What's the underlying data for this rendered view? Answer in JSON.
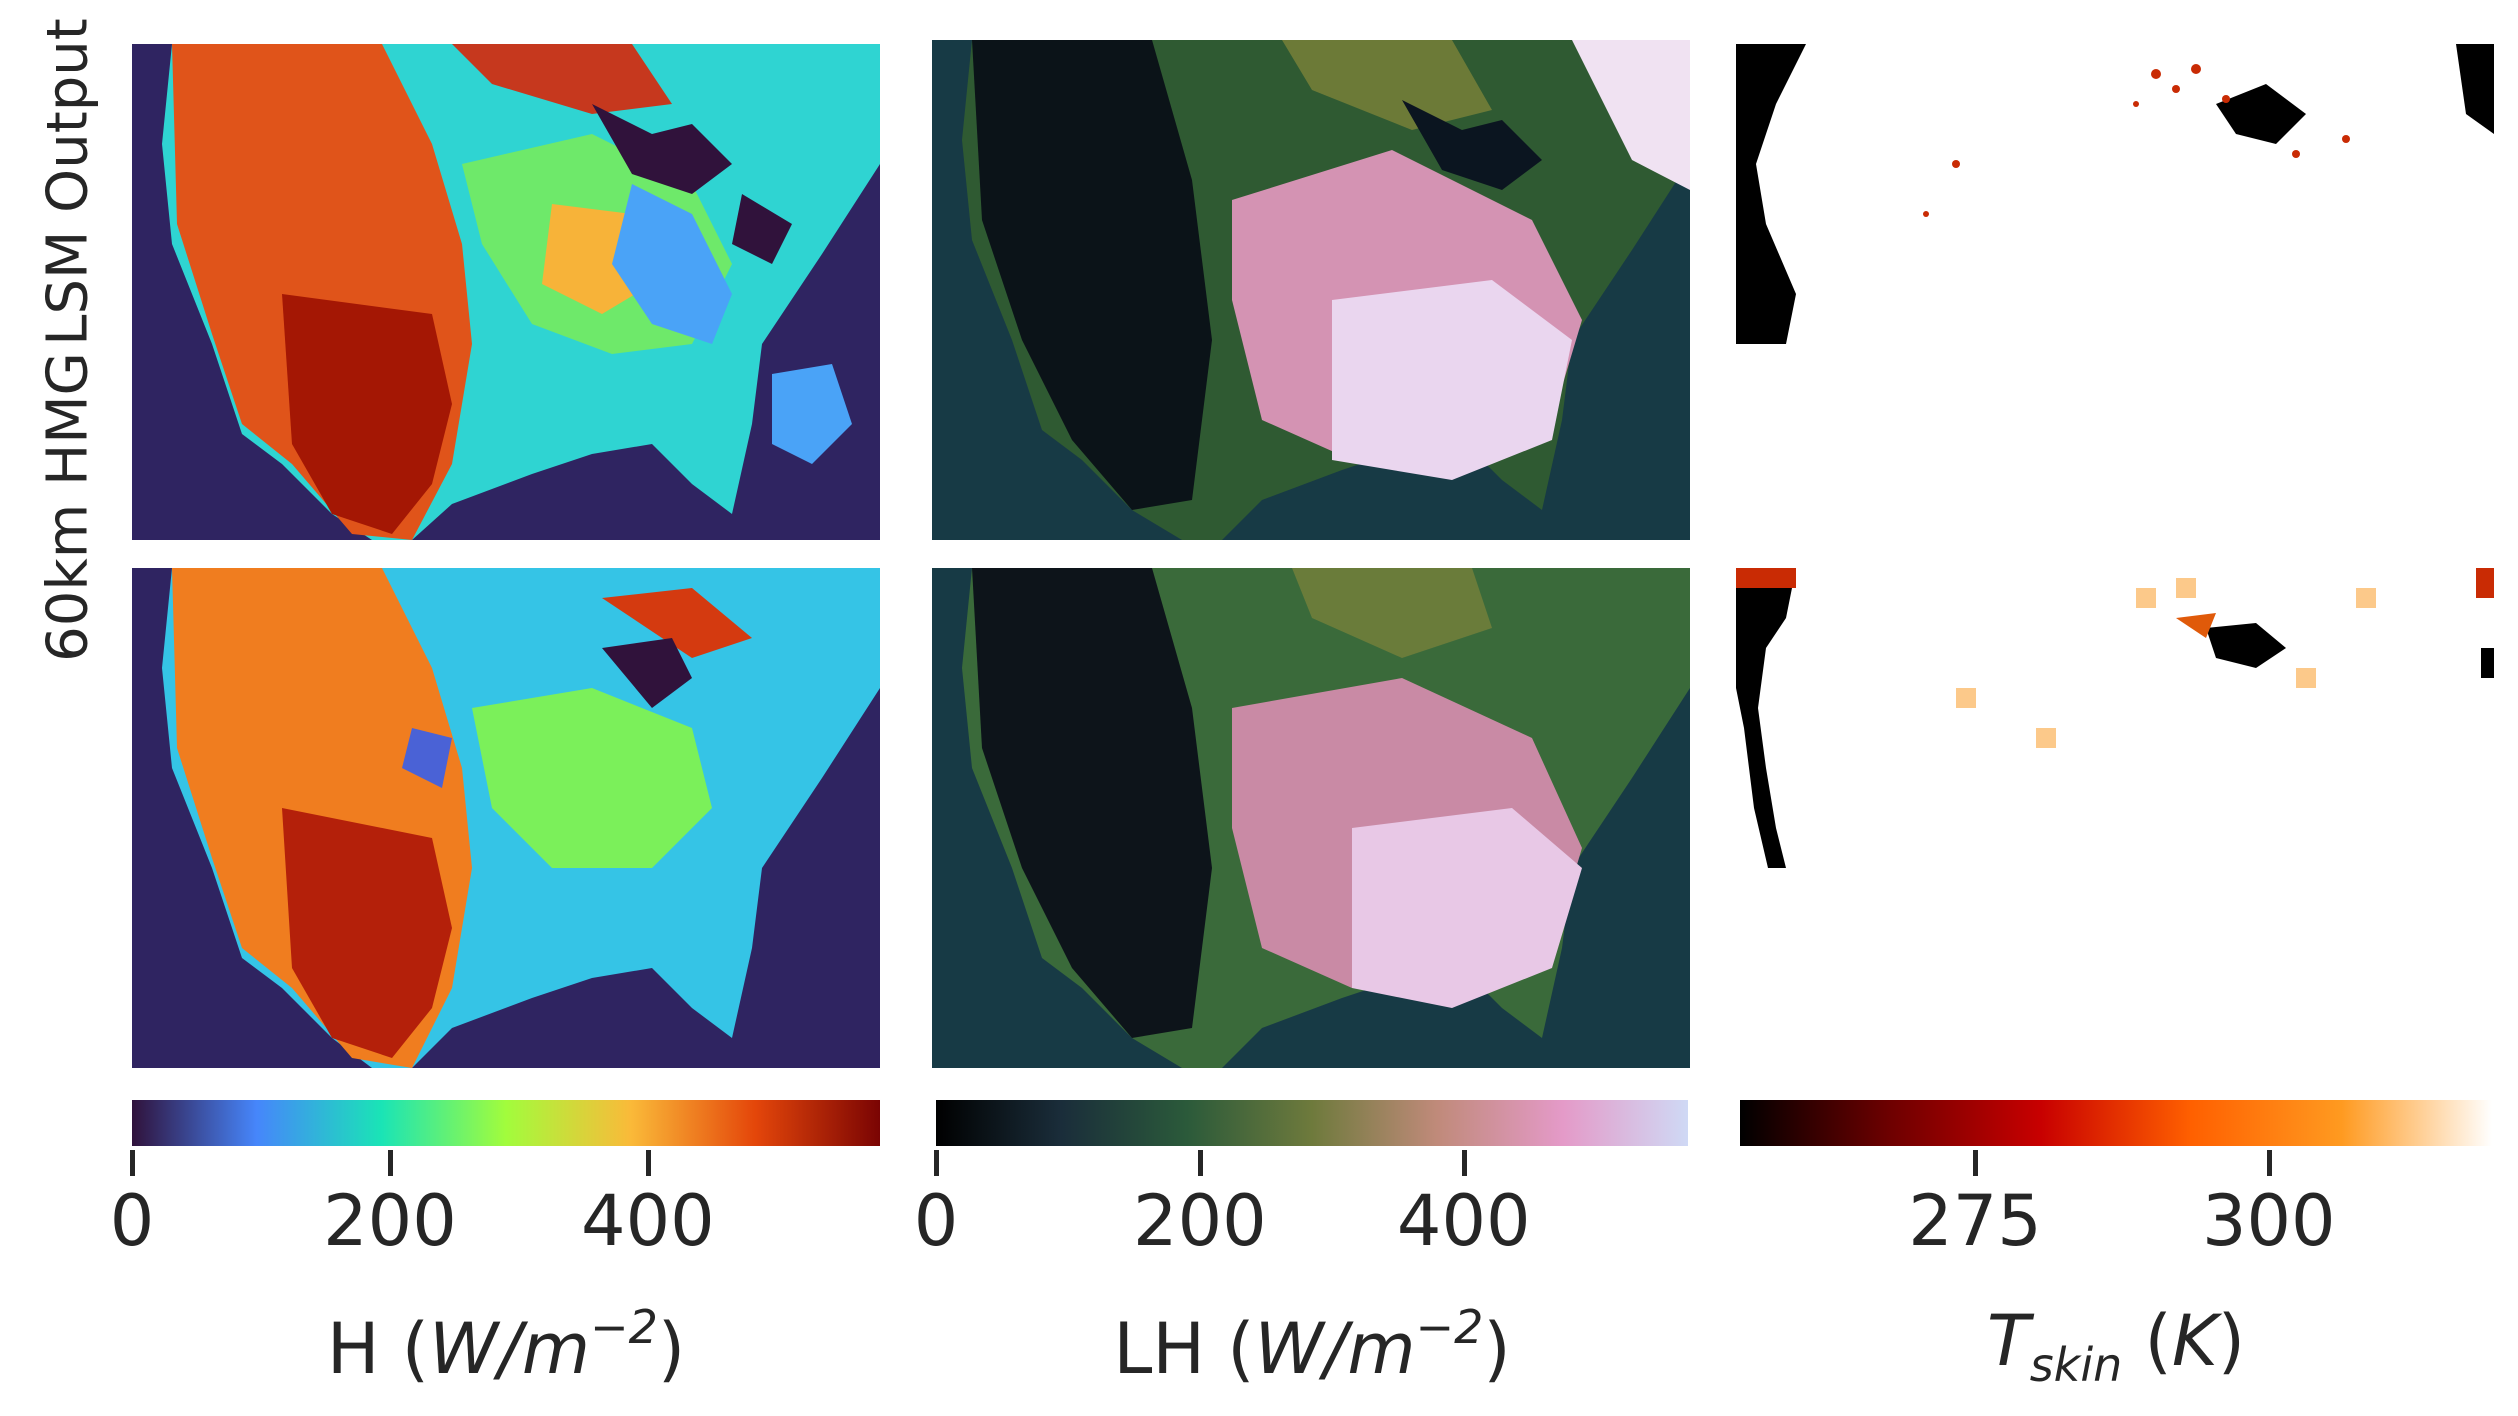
{
  "chart_data": {
    "type": "heatmap",
    "rows": [
      "LSM Output",
      "60km HMG"
    ],
    "columns": [
      {
        "variable": "H",
        "unit_label": "(W/m^-2)",
        "colormap": [
          "#30123b",
          "#4686fb",
          "#1ae4b6",
          "#a2fc3c",
          "#faba39",
          "#e4460a",
          "#7a0403"
        ],
        "vmin": 0,
        "vmax": 580,
        "ticks": [
          "0",
          "200",
          "400"
        ],
        "tick_values": [
          0,
          200,
          400
        ]
      },
      {
        "variable": "LH",
        "unit_label": "(W/m^-2)",
        "colormap": [
          "#000000",
          "#1a2d3a",
          "#2b5a3a",
          "#6e7a3c",
          "#c08a7a",
          "#e49ac8",
          "#cfd9f5"
        ],
        "vmin": 0,
        "vmax": 570,
        "ticks": [
          "0",
          "200",
          "400"
        ],
        "tick_values": [
          0,
          200,
          400
        ]
      },
      {
        "variable": "T_skin",
        "unit_label": "(K)",
        "colormap": [
          "#000000",
          "#6e0000",
          "#c80000",
          "#ff6000",
          "#ff9a20",
          "#ffffff"
        ],
        "vmin": 255,
        "vmax": 319,
        "ticks": [
          "275",
          "300"
        ],
        "tick_values": [
          275,
          300
        ]
      }
    ]
  },
  "labels": {
    "row_1": "LSM Output",
    "row_2": "60km HMG",
    "cb1_prefix": "H (",
    "cb1_unit": "W/m",
    "cb1_exp": "−2",
    "cb1_suffix": ")",
    "cb2_prefix": "LH (",
    "cb2_unit": "W/m",
    "cb2_exp": "−2",
    "cb2_suffix": ")",
    "cb3_var": "T",
    "cb3_sub": "skin",
    "cb3_unit_open": " (",
    "cb3_unit": "K",
    "cb3_unit_close": ")"
  }
}
